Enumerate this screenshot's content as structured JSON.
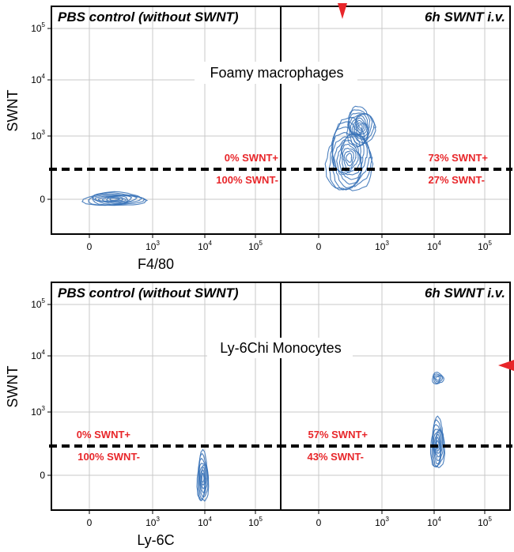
{
  "chart_data": [
    {
      "type": "contour",
      "panel": "top-left",
      "title": "PBS control (without SWNT)",
      "xlabel": "F4/80",
      "ylabel": "SWNT",
      "x_ticks": [
        {
          "base": "0",
          "exp": ""
        },
        {
          "base": "10",
          "exp": "3"
        },
        {
          "base": "10",
          "exp": "4"
        },
        {
          "base": "10",
          "exp": "5"
        }
      ],
      "y_ticks": [
        {
          "base": "0",
          "exp": ""
        },
        {
          "base": "10",
          "exp": "3"
        },
        {
          "base": "10",
          "exp": "4"
        },
        {
          "base": "10",
          "exp": "5"
        }
      ],
      "gate_labels": {
        "above": "0% SWNT+",
        "below": "100% SWNT-"
      },
      "populations": [
        {
          "center": [
            0.45,
            0.0
          ],
          "spread": [
            0.55,
            0.12
          ],
          "levels": 9
        }
      ]
    },
    {
      "type": "contour",
      "panel": "top-right",
      "title": "6h SWNT i.v.",
      "xlabel": "",
      "ylabel": "",
      "x_ticks": [
        {
          "base": "0",
          "exp": ""
        },
        {
          "base": "10",
          "exp": "3"
        },
        {
          "base": "10",
          "exp": "4"
        },
        {
          "base": "10",
          "exp": "5"
        }
      ],
      "y_ticks": [],
      "gate_labels": {
        "above": "73% SWNT+",
        "below": "27% SWNT-"
      },
      "populations": [
        {
          "center": [
            0.55,
            0.75
          ],
          "spread": [
            0.4,
            0.65
          ],
          "levels": 12
        },
        {
          "center": [
            0.75,
            1.3
          ],
          "spread": [
            0.25,
            0.35
          ],
          "levels": 10
        }
      ]
    },
    {
      "type": "contour",
      "panel": "bottom-left",
      "title": "PBS control (without SWNT)",
      "xlabel": "Ly-6C",
      "ylabel": "SWNT",
      "x_ticks": [
        {
          "base": "0",
          "exp": ""
        },
        {
          "base": "10",
          "exp": "3"
        },
        {
          "base": "10",
          "exp": "4"
        },
        {
          "base": "10",
          "exp": "5"
        }
      ],
      "y_ticks": [
        {
          "base": "0",
          "exp": ""
        },
        {
          "base": "10",
          "exp": "3"
        },
        {
          "base": "10",
          "exp": "4"
        },
        {
          "base": "10",
          "exp": "5"
        }
      ],
      "gate_labels": {
        "above": "0% SWNT+",
        "below": "100% SWNT-"
      },
      "populations": [
        {
          "center": [
            2.05,
            -0.05
          ],
          "spread": [
            0.1,
            0.45
          ],
          "levels": 8
        }
      ]
    },
    {
      "type": "contour",
      "panel": "bottom-right",
      "title": "6h SWNT i.v.",
      "xlabel": "",
      "ylabel": "",
      "x_ticks": [
        {
          "base": "0",
          "exp": ""
        },
        {
          "base": "10",
          "exp": "3"
        },
        {
          "base": "10",
          "exp": "4"
        },
        {
          "base": "10",
          "exp": "5"
        }
      ],
      "y_ticks": [],
      "gate_labels": {
        "above": "57% SWNT+",
        "below": "43% SWNT-"
      },
      "populations": [
        {
          "center": [
            2.15,
            0.55
          ],
          "spread": [
            0.12,
            0.45
          ],
          "levels": 9
        },
        {
          "center": [
            2.15,
            1.75
          ],
          "spread": [
            0.1,
            0.1
          ],
          "levels": 4
        }
      ]
    }
  ],
  "section_labels": {
    "top": "Foamy macrophages",
    "bottom": "Ly-6Chi Monocytes"
  }
}
